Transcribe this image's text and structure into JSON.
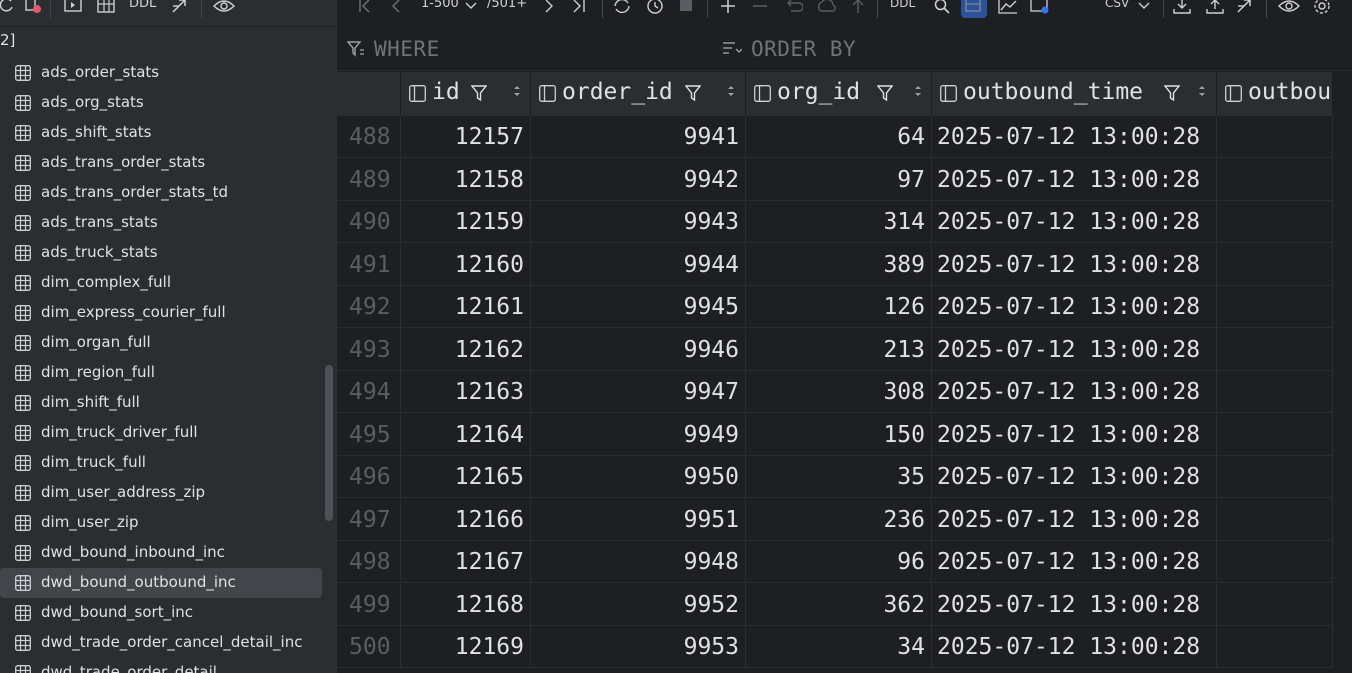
{
  "sidebar": {
    "root_label": "2]",
    "toolbar": {
      "ddl_label": "DDL"
    },
    "items": [
      {
        "label": "ads_order_stats"
      },
      {
        "label": "ads_org_stats"
      },
      {
        "label": "ads_shift_stats"
      },
      {
        "label": "ads_trans_order_stats"
      },
      {
        "label": "ads_trans_order_stats_td"
      },
      {
        "label": "ads_trans_stats"
      },
      {
        "label": "ads_truck_stats"
      },
      {
        "label": "dim_complex_full"
      },
      {
        "label": "dim_express_courier_full"
      },
      {
        "label": "dim_organ_full"
      },
      {
        "label": "dim_region_full"
      },
      {
        "label": "dim_shift_full"
      },
      {
        "label": "dim_truck_driver_full"
      },
      {
        "label": "dim_truck_full"
      },
      {
        "label": "dim_user_address_zip"
      },
      {
        "label": "dim_user_zip"
      },
      {
        "label": "dwd_bound_inbound_inc"
      },
      {
        "label": "dwd_bound_outbound_inc",
        "selected": true
      },
      {
        "label": "dwd_bound_sort_inc"
      },
      {
        "label": "dwd_trade_order_cancel_detail_inc"
      },
      {
        "label": "dwd_trade_order_detail"
      }
    ]
  },
  "results_toolbar": {
    "page_range": "1-500",
    "total": "/501+",
    "ddl_label": "DDL",
    "export_format": "CSV"
  },
  "filter": {
    "where_label": "WHERE",
    "orderby_label": "ORDER BY"
  },
  "columns": [
    "id",
    "order_id",
    "org_id",
    "outbound_time",
    "outbou"
  ],
  "rows": [
    {
      "n": "488",
      "id": "12157",
      "order_id": "9941",
      "org_id": "64",
      "outbound_time": "2025-07-12 13:00:28"
    },
    {
      "n": "489",
      "id": "12158",
      "order_id": "9942",
      "org_id": "97",
      "outbound_time": "2025-07-12 13:00:28"
    },
    {
      "n": "490",
      "id": "12159",
      "order_id": "9943",
      "org_id": "314",
      "outbound_time": "2025-07-12 13:00:28"
    },
    {
      "n": "491",
      "id": "12160",
      "order_id": "9944",
      "org_id": "389",
      "outbound_time": "2025-07-12 13:00:28"
    },
    {
      "n": "492",
      "id": "12161",
      "order_id": "9945",
      "org_id": "126",
      "outbound_time": "2025-07-12 13:00:28"
    },
    {
      "n": "493",
      "id": "12162",
      "order_id": "9946",
      "org_id": "213",
      "outbound_time": "2025-07-12 13:00:28"
    },
    {
      "n": "494",
      "id": "12163",
      "order_id": "9947",
      "org_id": "308",
      "outbound_time": "2025-07-12 13:00:28"
    },
    {
      "n": "495",
      "id": "12164",
      "order_id": "9949",
      "org_id": "150",
      "outbound_time": "2025-07-12 13:00:28"
    },
    {
      "n": "496",
      "id": "12165",
      "order_id": "9950",
      "org_id": "35",
      "outbound_time": "2025-07-12 13:00:28"
    },
    {
      "n": "497",
      "id": "12166",
      "order_id": "9951",
      "org_id": "236",
      "outbound_time": "2025-07-12 13:00:28"
    },
    {
      "n": "498",
      "id": "12167",
      "order_id": "9948",
      "org_id": "96",
      "outbound_time": "2025-07-12 13:00:28"
    },
    {
      "n": "499",
      "id": "12168",
      "order_id": "9952",
      "org_id": "362",
      "outbound_time": "2025-07-12 13:00:28"
    },
    {
      "n": "500",
      "id": "12169",
      "order_id": "9953",
      "org_id": "34",
      "outbound_time": "2025-07-12 13:00:28"
    }
  ]
}
